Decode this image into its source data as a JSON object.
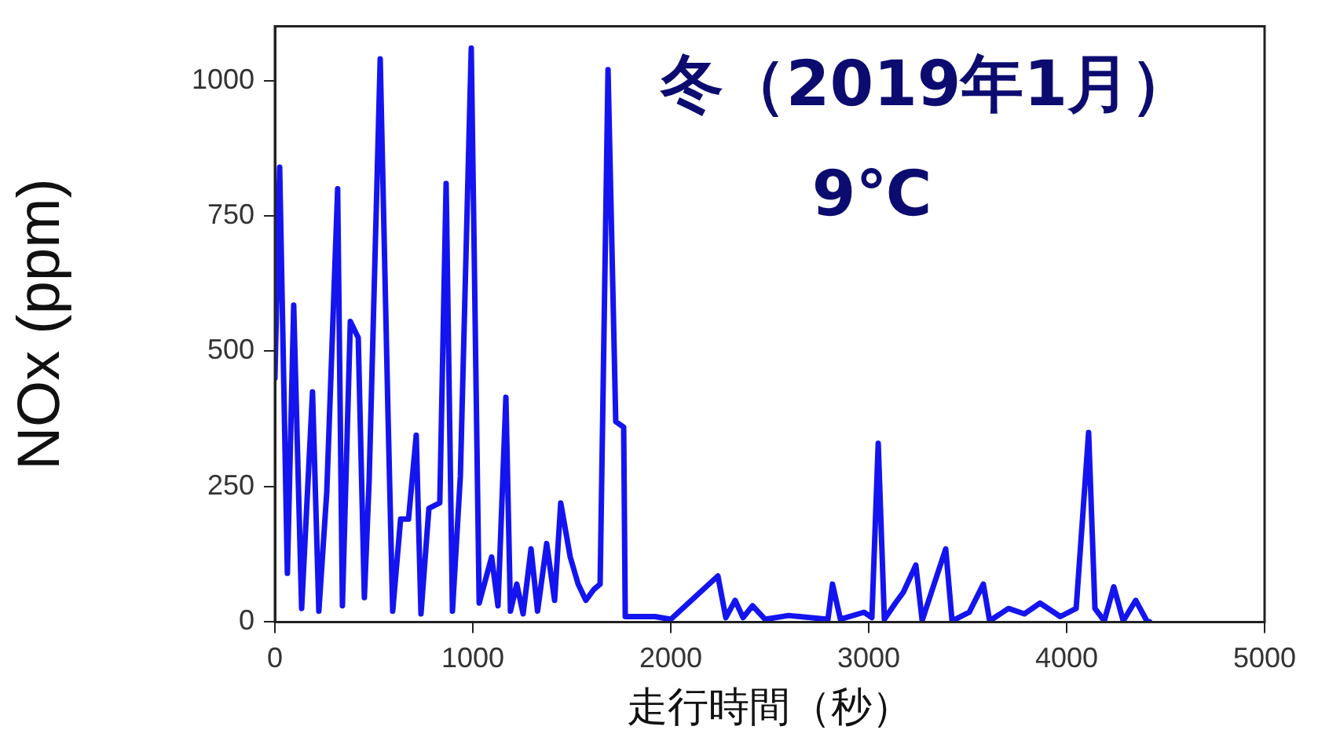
{
  "chart_data": {
    "type": "line",
    "xlabel": "走行時間（秒）",
    "ylabel": "NOx (ppm)",
    "annotations": [
      "冬（2019年1月）",
      "9℃"
    ],
    "xlim": [
      0,
      5000
    ],
    "xticks": [
      0,
      1000,
      2000,
      3000,
      4000,
      5000
    ],
    "ylim": [
      0,
      1100
    ],
    "yticks": [
      0,
      250,
      500,
      750,
      1000
    ],
    "grid": false,
    "legend": false,
    "marker": "none",
    "line_style": "solid",
    "series": [
      {
        "color": "#1414f0",
        "x": [
          0,
          24,
          63,
          95,
          135,
          190,
          222,
          262,
          317,
          341,
          381,
          421,
          452,
          476,
          532,
          571,
          595,
          635,
          675,
          714,
          738,
          778,
          833,
          865,
          897,
          937,
          992,
          1032,
          1095,
          1127,
          1167,
          1190,
          1222,
          1254,
          1294,
          1327,
          1373,
          1413,
          1444,
          1492,
          1532,
          1571,
          1611,
          1643,
          1683,
          1722,
          1762,
          1770,
          1921,
          2000,
          2238,
          2278,
          2325,
          2365,
          2413,
          2476,
          2595,
          2794,
          2817,
          2857,
          2976,
          3016,
          3048,
          3079,
          3135,
          3175,
          3238,
          3270,
          3389,
          3421,
          3508,
          3579,
          3611,
          3706,
          3786,
          3865,
          3968,
          4048,
          4111,
          4143,
          4190,
          4238,
          4286,
          4349,
          4405,
          4420
        ],
        "values": [
          450,
          840,
          90,
          585,
          25,
          425,
          20,
          240,
          800,
          30,
          555,
          525,
          45,
          260,
          1040,
          390,
          20,
          190,
          190,
          345,
          15,
          210,
          220,
          810,
          20,
          270,
          1060,
          35,
          120,
          30,
          415,
          20,
          70,
          15,
          135,
          20,
          145,
          40,
          220,
          120,
          70,
          40,
          60,
          70,
          1020,
          370,
          360,
          10,
          10,
          5,
          85,
          8,
          40,
          8,
          30,
          5,
          12,
          5,
          70,
          5,
          18,
          8,
          330,
          5,
          35,
          55,
          105,
          3,
          135,
          2,
          18,
          70,
          2,
          25,
          15,
          35,
          10,
          25,
          350,
          25,
          2,
          65,
          2,
          40,
          2,
          0
        ]
      }
    ]
  }
}
